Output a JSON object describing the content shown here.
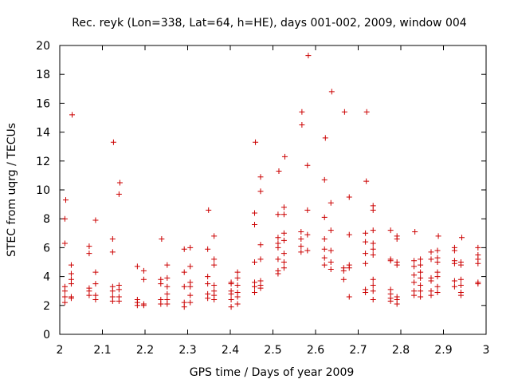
{
  "chart_data": {
    "type": "scatter",
    "title": "Rec. reyk (Lon=338, Lat=64, h=HE), days 001-002, 2009, window 004",
    "xlabel": "GPS time / Days of year 2009",
    "ylabel": "STEC from uqrg / TECUs",
    "xlim": [
      2,
      3
    ],
    "ylim": [
      0,
      20
    ],
    "xticks": [
      2,
      2.1,
      2.2,
      2.3,
      2.4,
      2.5,
      2.6,
      2.7,
      2.8,
      2.9,
      3
    ],
    "xtick_labels": [
      "2",
      "2.1",
      "2.2",
      "2.3",
      "2.4",
      "2.5",
      "2.6",
      "2.7",
      "2.8",
      "2.9",
      "3"
    ],
    "yticks": [
      0,
      2,
      4,
      6,
      8,
      10,
      12,
      14,
      16,
      18,
      20
    ],
    "ytick_labels": [
      "0",
      "2",
      "4",
      "6",
      "8",
      "10",
      "12",
      "14",
      "16",
      "18",
      "20"
    ],
    "grid": false,
    "legend": "none",
    "marker": "+",
    "color": "#cc0000",
    "points": [
      [
        2.012,
        2.2
      ],
      [
        2.012,
        2.6
      ],
      [
        2.012,
        3.0
      ],
      [
        2.012,
        3.3
      ],
      [
        2.012,
        6.3
      ],
      [
        2.012,
        8.0
      ],
      [
        2.014,
        9.3
      ],
      [
        2.027,
        2.5
      ],
      [
        2.027,
        2.6
      ],
      [
        2.027,
        3.5
      ],
      [
        2.027,
        3.8
      ],
      [
        2.027,
        4.2
      ],
      [
        2.027,
        4.8
      ],
      [
        2.029,
        15.2
      ],
      [
        2.069,
        2.7
      ],
      [
        2.069,
        3.0
      ],
      [
        2.069,
        3.2
      ],
      [
        2.069,
        5.6
      ],
      [
        2.069,
        6.1
      ],
      [
        2.084,
        2.4
      ],
      [
        2.084,
        2.7
      ],
      [
        2.084,
        3.5
      ],
      [
        2.084,
        4.3
      ],
      [
        2.084,
        7.9
      ],
      [
        2.124,
        2.3
      ],
      [
        2.124,
        2.6
      ],
      [
        2.124,
        3.0
      ],
      [
        2.124,
        3.3
      ],
      [
        2.124,
        5.7
      ],
      [
        2.124,
        6.6
      ],
      [
        2.126,
        13.3
      ],
      [
        2.139,
        2.3
      ],
      [
        2.139,
        2.6
      ],
      [
        2.139,
        3.1
      ],
      [
        2.139,
        3.4
      ],
      [
        2.139,
        9.7
      ],
      [
        2.141,
        10.5
      ],
      [
        2.182,
        2.0
      ],
      [
        2.182,
        2.2
      ],
      [
        2.182,
        2.4
      ],
      [
        2.182,
        4.7
      ],
      [
        2.197,
        2.0
      ],
      [
        2.197,
        2.1
      ],
      [
        2.197,
        3.8
      ],
      [
        2.197,
        4.4
      ],
      [
        2.237,
        2.1
      ],
      [
        2.237,
        2.4
      ],
      [
        2.237,
        3.5
      ],
      [
        2.237,
        3.8
      ],
      [
        2.239,
        6.6
      ],
      [
        2.252,
        2.1
      ],
      [
        2.252,
        2.4
      ],
      [
        2.252,
        2.8
      ],
      [
        2.252,
        3.3
      ],
      [
        2.252,
        3.9
      ],
      [
        2.252,
        4.8
      ],
      [
        2.292,
        1.9
      ],
      [
        2.292,
        2.2
      ],
      [
        2.292,
        3.3
      ],
      [
        2.292,
        4.3
      ],
      [
        2.292,
        5.9
      ],
      [
        2.306,
        2.2
      ],
      [
        2.306,
        2.7
      ],
      [
        2.306,
        3.3
      ],
      [
        2.306,
        3.6
      ],
      [
        2.306,
        4.7
      ],
      [
        2.306,
        6.0
      ],
      [
        2.347,
        2.5
      ],
      [
        2.347,
        2.8
      ],
      [
        2.347,
        3.5
      ],
      [
        2.347,
        4.0
      ],
      [
        2.347,
        5.9
      ],
      [
        2.349,
        8.6
      ],
      [
        2.362,
        2.4
      ],
      [
        2.362,
        2.7
      ],
      [
        2.362,
        3.0
      ],
      [
        2.362,
        3.4
      ],
      [
        2.362,
        4.8
      ],
      [
        2.362,
        5.2
      ],
      [
        2.362,
        6.8
      ],
      [
        2.402,
        1.9
      ],
      [
        2.402,
        2.4
      ],
      [
        2.402,
        2.8
      ],
      [
        2.402,
        3.0
      ],
      [
        2.402,
        3.5
      ],
      [
        2.402,
        3.6
      ],
      [
        2.417,
        2.1
      ],
      [
        2.417,
        2.6
      ],
      [
        2.417,
        2.9
      ],
      [
        2.417,
        3.4
      ],
      [
        2.417,
        3.9
      ],
      [
        2.417,
        4.3
      ],
      [
        2.457,
        2.9
      ],
      [
        2.457,
        3.3
      ],
      [
        2.457,
        3.6
      ],
      [
        2.457,
        5.0
      ],
      [
        2.457,
        7.6
      ],
      [
        2.457,
        8.4
      ],
      [
        2.459,
        13.3
      ],
      [
        2.471,
        3.2
      ],
      [
        2.471,
        3.4
      ],
      [
        2.471,
        3.7
      ],
      [
        2.471,
        5.2
      ],
      [
        2.471,
        6.2
      ],
      [
        2.471,
        9.9
      ],
      [
        2.471,
        10.9
      ],
      [
        2.512,
        4.2
      ],
      [
        2.512,
        4.4
      ],
      [
        2.512,
        5.2
      ],
      [
        2.512,
        6.0
      ],
      [
        2.512,
        6.3
      ],
      [
        2.512,
        6.7
      ],
      [
        2.512,
        8.3
      ],
      [
        2.514,
        11.3
      ],
      [
        2.526,
        4.6
      ],
      [
        2.526,
        5.0
      ],
      [
        2.526,
        5.6
      ],
      [
        2.526,
        6.5
      ],
      [
        2.526,
        7.0
      ],
      [
        2.526,
        8.3
      ],
      [
        2.526,
        8.8
      ],
      [
        2.528,
        12.3
      ],
      [
        2.566,
        5.7
      ],
      [
        2.566,
        6.1
      ],
      [
        2.566,
        6.6
      ],
      [
        2.566,
        7.1
      ],
      [
        2.568,
        14.5
      ],
      [
        2.568,
        15.4
      ],
      [
        2.581,
        5.8
      ],
      [
        2.581,
        6.9
      ],
      [
        2.581,
        8.6
      ],
      [
        2.581,
        11.7
      ],
      [
        2.583,
        19.3
      ],
      [
        2.621,
        4.8
      ],
      [
        2.621,
        5.3
      ],
      [
        2.621,
        5.9
      ],
      [
        2.621,
        6.6
      ],
      [
        2.621,
        8.1
      ],
      [
        2.621,
        10.7
      ],
      [
        2.623,
        13.6
      ],
      [
        2.636,
        4.5
      ],
      [
        2.636,
        5.0
      ],
      [
        2.636,
        5.8
      ],
      [
        2.636,
        7.2
      ],
      [
        2.636,
        9.1
      ],
      [
        2.638,
        16.8
      ],
      [
        2.666,
        3.8
      ],
      [
        2.666,
        4.4
      ],
      [
        2.666,
        4.6
      ],
      [
        2.668,
        15.4
      ],
      [
        2.679,
        2.6
      ],
      [
        2.679,
        4.6
      ],
      [
        2.679,
        4.8
      ],
      [
        2.679,
        6.9
      ],
      [
        2.679,
        9.5
      ],
      [
        2.717,
        2.9
      ],
      [
        2.717,
        3.1
      ],
      [
        2.717,
        4.9
      ],
      [
        2.717,
        5.6
      ],
      [
        2.717,
        6.4
      ],
      [
        2.717,
        7.0
      ],
      [
        2.719,
        10.6
      ],
      [
        2.72,
        15.4
      ],
      [
        2.735,
        2.4
      ],
      [
        2.735,
        3.0
      ],
      [
        2.735,
        3.4
      ],
      [
        2.735,
        3.8
      ],
      [
        2.735,
        5.5
      ],
      [
        2.735,
        5.9
      ],
      [
        2.735,
        6.3
      ],
      [
        2.735,
        7.2
      ],
      [
        2.735,
        8.6
      ],
      [
        2.735,
        8.9
      ],
      [
        2.776,
        2.3
      ],
      [
        2.776,
        2.5
      ],
      [
        2.776,
        2.8
      ],
      [
        2.776,
        3.1
      ],
      [
        2.776,
        5.1
      ],
      [
        2.776,
        5.2
      ],
      [
        2.776,
        7.2
      ],
      [
        2.791,
        2.1
      ],
      [
        2.791,
        2.4
      ],
      [
        2.791,
        2.6
      ],
      [
        2.791,
        4.8
      ],
      [
        2.791,
        5.0
      ],
      [
        2.791,
        6.6
      ],
      [
        2.791,
        6.8
      ],
      [
        2.831,
        2.7
      ],
      [
        2.831,
        3.0
      ],
      [
        2.831,
        3.6
      ],
      [
        2.831,
        4.1
      ],
      [
        2.831,
        4.7
      ],
      [
        2.831,
        5.1
      ],
      [
        2.833,
        7.1
      ],
      [
        2.846,
        2.6
      ],
      [
        2.846,
        3.0
      ],
      [
        2.846,
        3.4
      ],
      [
        2.846,
        3.9
      ],
      [
        2.846,
        4.3
      ],
      [
        2.846,
        4.8
      ],
      [
        2.846,
        5.2
      ],
      [
        2.871,
        2.7
      ],
      [
        2.871,
        3.0
      ],
      [
        2.871,
        3.7
      ],
      [
        2.871,
        3.9
      ],
      [
        2.871,
        5.2
      ],
      [
        2.871,
        5.7
      ],
      [
        2.886,
        2.9
      ],
      [
        2.886,
        3.3
      ],
      [
        2.886,
        4.0
      ],
      [
        2.886,
        4.3
      ],
      [
        2.886,
        5.0
      ],
      [
        2.886,
        5.3
      ],
      [
        2.886,
        5.8
      ],
      [
        2.888,
        6.8
      ],
      [
        2.926,
        3.3
      ],
      [
        2.926,
        3.7
      ],
      [
        2.926,
        4.9
      ],
      [
        2.926,
        5.1
      ],
      [
        2.926,
        5.8
      ],
      [
        2.926,
        6.0
      ],
      [
        2.941,
        2.7
      ],
      [
        2.941,
        2.9
      ],
      [
        2.941,
        3.4
      ],
      [
        2.941,
        3.8
      ],
      [
        2.941,
        4.8
      ],
      [
        2.941,
        5.0
      ],
      [
        2.943,
        6.7
      ],
      [
        2.981,
        3.5
      ],
      [
        2.981,
        3.6
      ],
      [
        2.981,
        4.9
      ],
      [
        2.981,
        5.2
      ],
      [
        2.981,
        5.5
      ],
      [
        2.981,
        6.0
      ]
    ]
  }
}
